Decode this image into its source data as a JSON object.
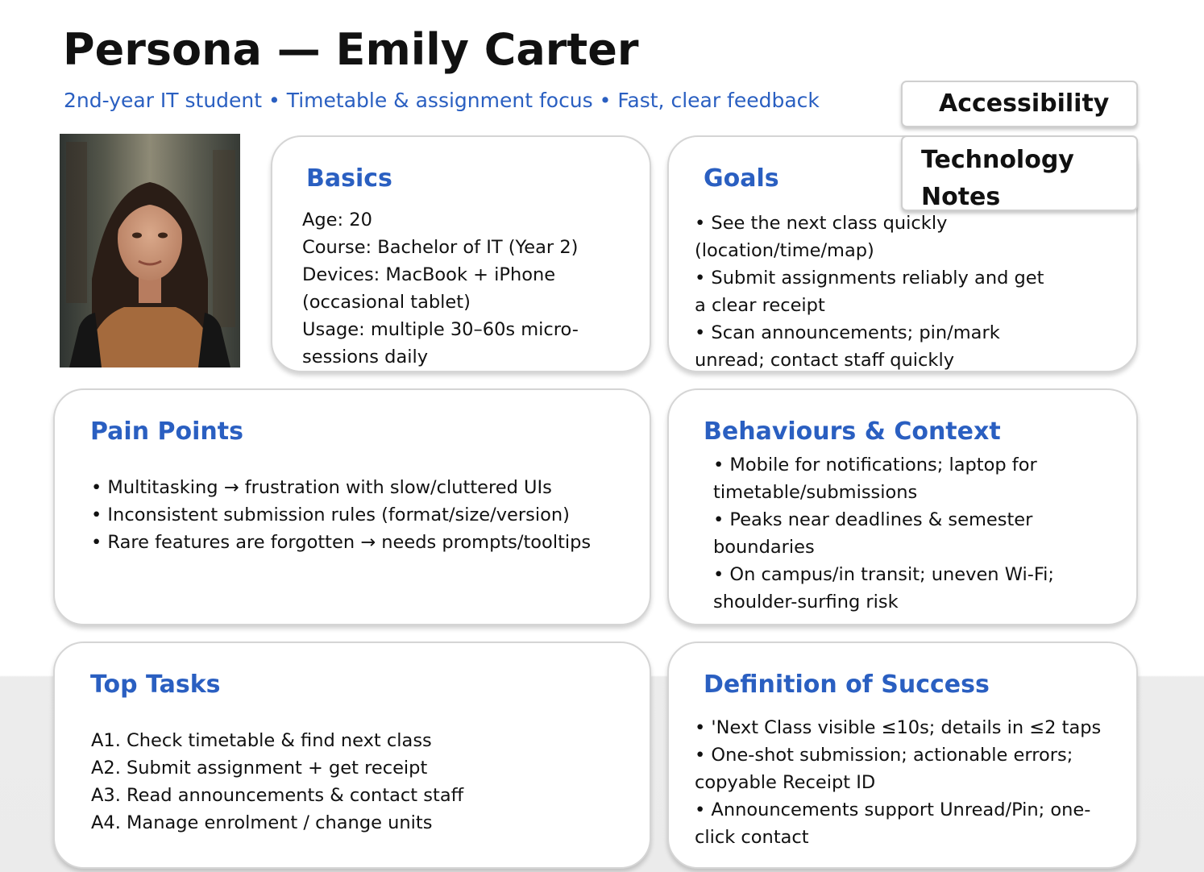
{
  "header": {
    "title": "Persona — Emily Carter",
    "subtitle": "2nd-year IT student • Timetable & assignment focus • Fast, clear feedback"
  },
  "tags": {
    "accessibility": "Accessibility",
    "technology_notes_line1": "Technology",
    "technology_notes_line2": "Notes"
  },
  "photo": {
    "alt": "Portrait of Emily Carter"
  },
  "basics": {
    "heading": "Basics",
    "lines": [
      "Age: 20",
      "Course: Bachelor of IT (Year 2)",
      "Devices: MacBook + iPhone",
      "(occasional tablet)",
      "Usage: multiple 30–60s micro-",
      "sessions daily"
    ]
  },
  "goals": {
    "heading": "Goals",
    "lines": [
      "• See the next class quickly",
      "(location/time/map)",
      "• Submit assignments reliably and get",
      "a clear receipt",
      "• Scan announcements; pin/mark",
      "unread; contact staff quickly"
    ]
  },
  "pain_points": {
    "heading": "Pain Points",
    "lines": [
      "• Multitasking → frustration with slow/cluttered UIs",
      "• Inconsistent submission rules (format/size/version)",
      "• Rare features are forgotten → needs prompts/tooltips"
    ]
  },
  "behaviours": {
    "heading": "Behaviours & Context",
    "lines": [
      "• Mobile for notifications; laptop for",
      "timetable/submissions",
      "• Peaks near deadlines & semester",
      "boundaries",
      "• On campus/in transit; uneven Wi-Fi;",
      "shoulder-surfing risk"
    ]
  },
  "top_tasks": {
    "heading": "Top Tasks",
    "lines": [
      "A1. Check timetable & find next class",
      "A2. Submit assignment + get receipt",
      "A3. Read announcements & contact staff",
      "A4. Manage enrolment / change units"
    ]
  },
  "success": {
    "heading": "Definition of Success",
    "lines": [
      "• 'Next Class visible ≤10s; details in ≤2 taps",
      "• One-shot submission; actionable errors;",
      "copyable Receipt ID",
      "• Announcements support Unread/Pin; one-",
      "click contact"
    ]
  },
  "colors": {
    "heading_blue": "#2a5fc1",
    "text": "#111111",
    "card_border": "#d5d5d5"
  }
}
